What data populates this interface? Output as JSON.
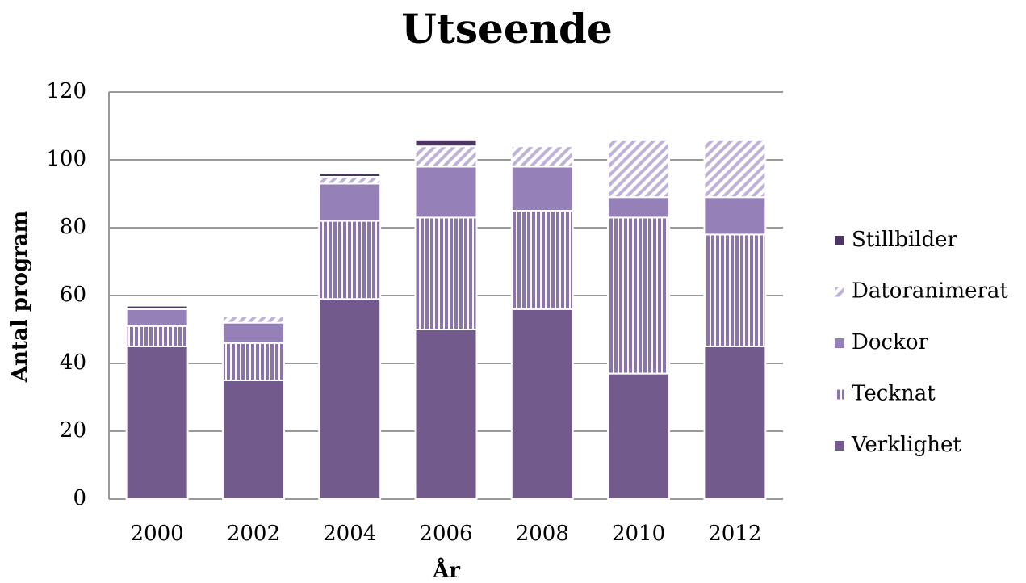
{
  "chart_data": {
    "type": "stacked_bar",
    "title": "Utseende",
    "x_label": "År",
    "y_label": "Antal program",
    "categories": [
      "2000",
      "2002",
      "2004",
      "2006",
      "2008",
      "2010",
      "2012"
    ],
    "series": [
      {
        "name": "Verklighet",
        "color": "#725a8c",
        "pattern": "solid",
        "values": [
          45,
          35,
          59,
          50,
          56,
          37,
          45
        ]
      },
      {
        "name": "Tecknat",
        "color": "#8a74ab",
        "pattern": "vertical",
        "values": [
          6,
          11,
          23,
          33,
          29,
          46,
          33
        ]
      },
      {
        "name": "Dockor",
        "color": "#9580b8",
        "pattern": "solid",
        "values": [
          5,
          6,
          11,
          15,
          13,
          6,
          11
        ]
      },
      {
        "name": "Datoranimerat",
        "color": "#bfb1d8",
        "pattern": "diagonal",
        "values": [
          0,
          2,
          2,
          6,
          6,
          17,
          17
        ]
      },
      {
        "name": "Stillbilder",
        "color": "#4a3660",
        "pattern": "solid",
        "values": [
          1,
          0,
          1,
          2,
          0,
          0,
          0
        ]
      }
    ],
    "ylim": [
      0,
      120
    ],
    "yticks": [
      0,
      20,
      40,
      60,
      80,
      100,
      120
    ],
    "grid": true,
    "legend": "right"
  }
}
